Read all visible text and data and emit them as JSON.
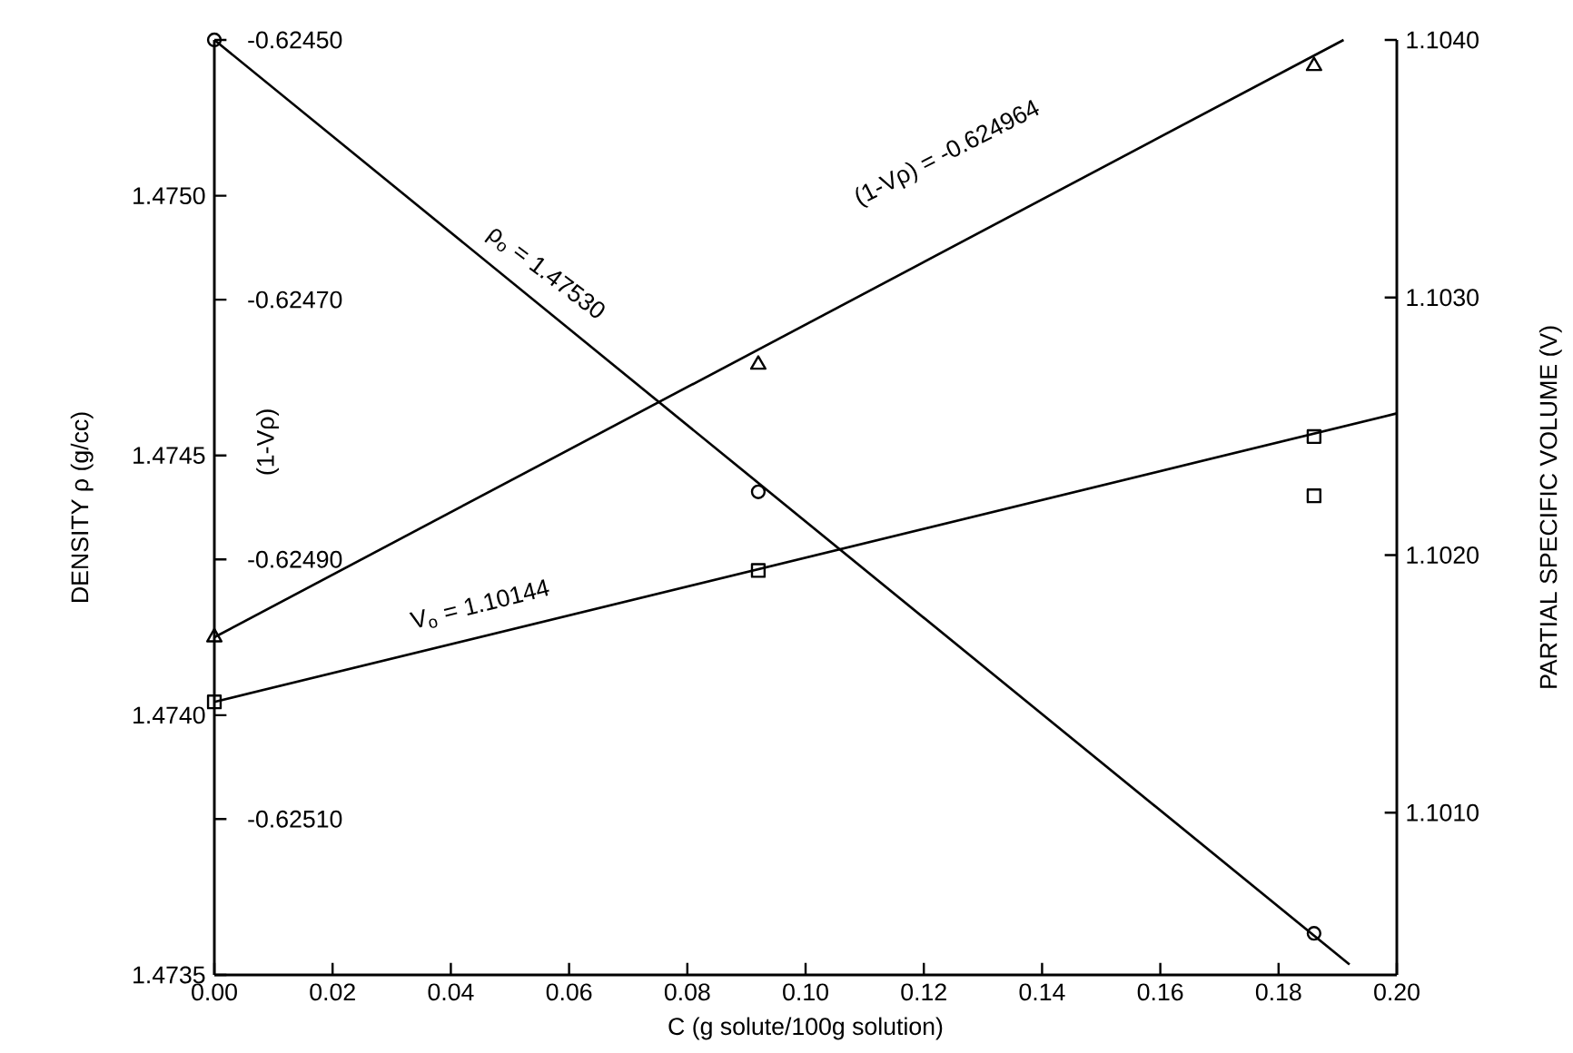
{
  "chart_data": {
    "type": "scatter",
    "xlabel": "C (g solute/100g solution)",
    "ylabel": "DENSITY ρ (g/cc)",
    "y2label": "PARTIAL SPECIFIC VOLUME (V)",
    "y3label": "(1-Vρ)",
    "xlim": [
      0,
      0.2
    ],
    "xticks": [
      {
        "value": 0,
        "label": "0.00"
      },
      {
        "value": 0.02,
        "label": "0.02"
      },
      {
        "value": 0.04,
        "label": "0.04"
      },
      {
        "value": 0.06,
        "label": "0.06"
      },
      {
        "value": 0.08,
        "label": "0.08"
      },
      {
        "value": 0.1,
        "label": "0.10"
      },
      {
        "value": 0.12,
        "label": "0.12"
      },
      {
        "value": 0.14,
        "label": "0.14"
      },
      {
        "value": 0.16,
        "label": "0.16"
      },
      {
        "value": 0.18,
        "label": "0.18"
      },
      {
        "value": 0.2,
        "label": "0.20"
      }
    ],
    "ylim": [
      1.4735,
      1.4753
    ],
    "yticks": [
      {
        "value": 1.4735,
        "label": "1.4735"
      },
      {
        "value": 1.474,
        "label": "1.4740"
      },
      {
        "value": 1.4745,
        "label": "1.4745"
      },
      {
        "value": 1.475,
        "label": "1.4750"
      }
    ],
    "y2lim": [
      1.10037,
      1.104
    ],
    "y2ticks": [
      {
        "value": 1.101,
        "label": "1.1010"
      },
      {
        "value": 1.102,
        "label": "1.1020"
      },
      {
        "value": 1.103,
        "label": "1.1030"
      },
      {
        "value": 1.104,
        "label": "1.1040"
      }
    ],
    "y3lim": [
      -0.62522,
      -0.6245
    ],
    "y3ticks": [
      {
        "value": -0.6251,
        "label": "-0.62510"
      },
      {
        "value": -0.6249,
        "label": "-0.62490"
      },
      {
        "value": -0.6247,
        "label": "-0.62470"
      },
      {
        "value": -0.6245,
        "label": "-0.62450"
      }
    ],
    "series": [
      {
        "marker": "circle",
        "color": "#000000",
        "x": [
          0,
          0.092,
          0.186
        ],
        "values": [
          1.4753,
          1.47443,
          1.47358
        ]
      },
      {
        "type": "line",
        "marker": "none",
        "color": "#000000",
        "x": [
          0,
          0.192
        ],
        "values": [
          1.4753,
          1.47352
        ]
      },
      {
        "marker": "triangle",
        "color": "#000000",
        "axis": "y3",
        "x": [
          0,
          0.092,
          0.186
        ],
        "values": [
          -0.62496,
          -0.62475,
          -0.62452
        ]
      },
      {
        "type": "line",
        "marker": "none",
        "color": "#000000",
        "axis": "y3",
        "x": [
          0,
          0.191
        ],
        "values": [
          -0.62496,
          -0.6245
        ]
      },
      {
        "marker": "square",
        "color": "#000000",
        "axis": "y2",
        "x": [
          0,
          0.092,
          0.186,
          0.186
        ],
        "values": [
          1.10143,
          1.10194,
          1.10246,
          1.10223
        ]
      },
      {
        "type": "line",
        "marker": "none",
        "color": "#000000",
        "axis": "y2",
        "x": [
          0,
          0.2
        ],
        "values": [
          1.10143,
          1.10255
        ]
      }
    ],
    "annotations": [
      "ρ$_{o}$ = 1.47530",
      "(1-Vρ) = -0.624964",
      "V$_{o}$ = 1.10144"
    ]
  }
}
